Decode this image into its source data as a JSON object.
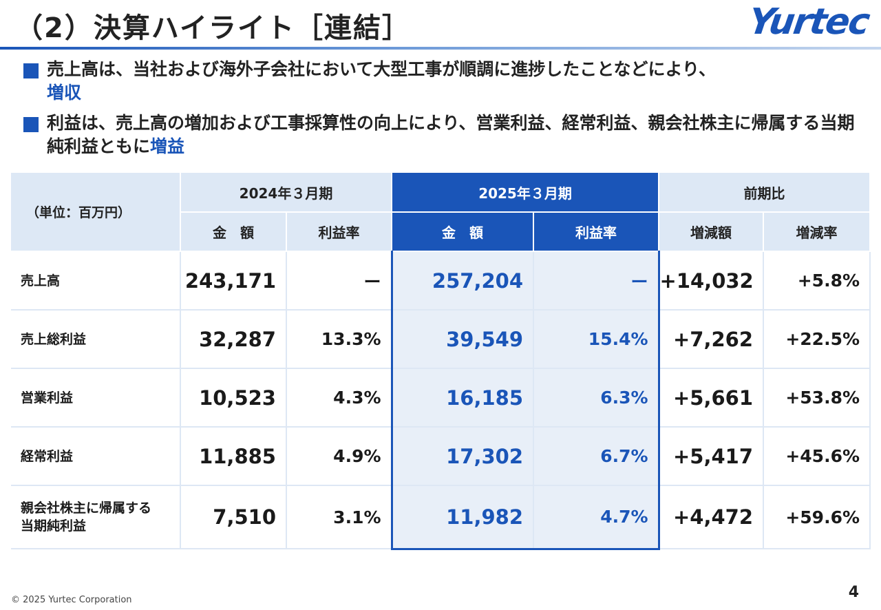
{
  "header": {
    "title": "（2）決算ハイライト［連結］",
    "logo_text": "Yurtec"
  },
  "bullets": [
    {
      "text": "売上高は、当社および海外子会社において大型工事が順調に進捗したことなどにより、",
      "highlight": "増収"
    },
    {
      "text": "利益は、売上高の増加および工事採算性の向上により、営業利益、経常利益、親会社株主に帰属する当期純利益ともに",
      "highlight": "増益"
    }
  ],
  "table": {
    "unit_label": "（単位：百万円）",
    "period_prev": "2024年３月期",
    "period_cur": "2025年３月期",
    "comparison": "前期比",
    "sub_headers": {
      "amount": "金　額",
      "margin": "利益率",
      "change_amount": "増減額",
      "change_rate": "増減率"
    },
    "rows": [
      {
        "label": "売上高",
        "prev_amount": "243,171",
        "prev_margin": "ー",
        "cur_amount": "257,204",
        "cur_margin": "ー",
        "change_amount": "+14,032",
        "change_rate": "+5.8%"
      },
      {
        "label": "売上総利益",
        "prev_amount": "32,287",
        "prev_margin": "13.3%",
        "cur_amount": "39,549",
        "cur_margin": "15.4%",
        "change_amount": "+7,262",
        "change_rate": "+22.5%"
      },
      {
        "label": "営業利益",
        "prev_amount": "10,523",
        "prev_margin": "4.3%",
        "cur_amount": "16,185",
        "cur_margin": "6.3%",
        "change_amount": "+5,661",
        "change_rate": "+53.8%"
      },
      {
        "label": "経常利益",
        "prev_amount": "11,885",
        "prev_margin": "4.9%",
        "cur_amount": "17,302",
        "cur_margin": "6.7%",
        "change_amount": "+5,417",
        "change_rate": "+45.6%"
      },
      {
        "label_line1": "親会社株主に帰属する",
        "label_line2": "当期純利益",
        "prev_amount": "7,510",
        "prev_margin": "3.1%",
        "cur_amount": "11,982",
        "cur_margin": "4.7%",
        "change_amount": "+4,472",
        "change_rate": "+59.6%"
      }
    ]
  },
  "footer": {
    "copyright": "© 2025 Yurtec Corporation",
    "page_number": "4"
  },
  "colors": {
    "accent": "#1a55b8",
    "header_bg": "#dde8f5",
    "highlight_col_bg": "#e8eff8"
  }
}
